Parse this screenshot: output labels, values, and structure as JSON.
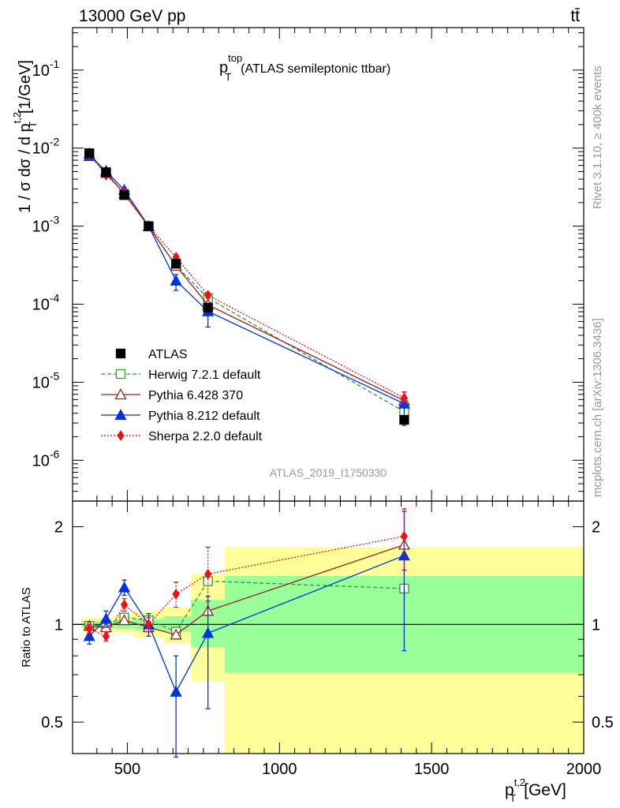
{
  "header": {
    "energy_label": "13000 GeV pp",
    "process_label": "tt̄"
  },
  "side_labels": {
    "rivet": "Rivet 3.1.10, ≥ 400k events",
    "mcplots": "mcplots.cern.ch [arXiv:1306.3436]"
  },
  "chart_data": [
    {
      "type": "line",
      "panel": "main",
      "title_main": "p",
      "title_sup": "top",
      "title_sub": "T",
      "title_rest": "(ATLAS semileptonic ttbar)",
      "analysis_id": "ATLAS_2019_I1750330",
      "ylabel": "1 / σ dσ / d p_T^{t,2} [1/GeV]",
      "ylabel_main": "1 / σ dσ / d p",
      "ylabel_sup": "t,2",
      "ylabel_sub": "T",
      "ylabel_unit": "[1/GeV]",
      "yscale": "log",
      "xlim": [
        320,
        2000
      ],
      "ylim": [
        3e-07,
        0.35
      ],
      "yticks": [
        1e-06,
        1e-05,
        0.0001,
        0.001,
        0.01,
        0.1
      ],
      "ytick_labels": [
        {
          "base": "10",
          "exp": "-6"
        },
        {
          "base": "10",
          "exp": "-5"
        },
        {
          "base": "10",
          "exp": "-4"
        },
        {
          "base": "10",
          "exp": "-3"
        },
        {
          "base": "10",
          "exp": "-2"
        },
        {
          "base": "10",
          "exp": "-1"
        }
      ],
      "x": [
        375,
        430,
        490,
        570,
        660,
        765,
        1410
      ],
      "legend_position": "lower-left",
      "series": [
        {
          "name": "ATLAS",
          "color": "#000000",
          "marker": "filled-square",
          "line": "none",
          "values": [
            0.0086,
            0.0049,
            0.0025,
            0.001,
            0.00033,
            9e-05,
            3.3e-06
          ],
          "err_up": [
            0,
            0,
            0,
            0,
            0,
            0,
            0
          ],
          "err_down": [
            0,
            0,
            0,
            0,
            0,
            0,
            0
          ]
        },
        {
          "name": "Herwig 7.2.1 default",
          "color": "#339933",
          "marker": "open-square",
          "line": "dashed",
          "values": [
            0.0085,
            0.0049,
            0.0026,
            0.001,
            0.00031,
            0.00012,
            4.2e-06
          ],
          "err_up": [
            0,
            0,
            0,
            0,
            0,
            0,
            0
          ],
          "err_down": [
            0,
            0,
            0,
            0,
            0,
            0,
            0
          ]
        },
        {
          "name": "Pythia 6.428 370",
          "color": "#992222",
          "marker": "open-triangle",
          "line": "solid",
          "values": [
            0.0085,
            0.0048,
            0.0026,
            0.00099,
            0.00031,
            9.8e-05,
            5.8e-06
          ],
          "err_up": [
            0,
            0,
            0,
            0,
            0,
            0,
            0
          ],
          "err_down": [
            0,
            0,
            0,
            0,
            0,
            0,
            0
          ]
        },
        {
          "name": "Pythia 8.212 default",
          "color": "#0033dd",
          "marker": "filled-triangle",
          "line": "solid",
          "values": [
            0.0079,
            0.0051,
            0.0029,
            0.001,
            0.0002,
            8.1e-05,
            5.3e-06
          ],
          "err_up": [
            0.0004,
            0.0003,
            0.0002,
            6e-05,
            4e-05,
            1.8e-05,
            2.2e-06
          ],
          "err_down": [
            0.0004,
            0.0003,
            0.0002,
            6e-05,
            5e-05,
            3e-05,
            2.5e-06
          ]
        },
        {
          "name": "Sherpa 2.2.0 default",
          "color": "#ee1111",
          "marker": "filled-diamond",
          "line": "dotted",
          "values": [
            0.0083,
            0.0045,
            0.0027,
            0.001,
            0.0004,
            0.00013,
            6.3e-06
          ],
          "err_up": [
            0.0003,
            0.0002,
            0.0001,
            4e-05,
            3e-05,
            1e-05,
            1.2e-06
          ],
          "err_down": [
            0.0003,
            0.0002,
            0.0001,
            4e-05,
            3e-05,
            1e-05,
            1.2e-06
          ]
        }
      ]
    },
    {
      "type": "line",
      "panel": "ratio",
      "ylabel": "Ratio to ATLAS",
      "xlabel": "p_T^{t,2} [GeV]",
      "xlabel_main": "p",
      "xlabel_sup": "t,2",
      "xlabel_sub": "T",
      "xlabel_unit": "[GeV]",
      "yscale": "log",
      "xlim": [
        320,
        2000
      ],
      "ylim": [
        0.4,
        2.4
      ],
      "xticks": [
        500,
        1000,
        1500,
        2000
      ],
      "xtick_labels": [
        "500",
        "1000",
        "1500",
        "2000"
      ],
      "yticks": [
        0.5,
        1,
        2
      ],
      "ytick_labels": [
        "0.5",
        "1",
        "2"
      ],
      "x": [
        375,
        430,
        490,
        570,
        660,
        765,
        1410
      ],
      "bands": {
        "bin_edges": [
          350,
          400,
          460,
          520,
          620,
          710,
          820,
          2000
        ],
        "total": {
          "color": "#ffff99",
          "lower": [
            0.95,
            0.95,
            0.94,
            0.91,
            0.87,
            0.67,
            0.35
          ],
          "upper": [
            1.05,
            1.05,
            1.07,
            1.1,
            1.13,
            1.43,
            1.73
          ]
        },
        "stat": {
          "color": "#99ff99",
          "lower": [
            0.975,
            0.975,
            0.97,
            0.96,
            0.95,
            0.85,
            0.71
          ],
          "upper": [
            1.025,
            1.025,
            1.03,
            1.04,
            1.06,
            1.19,
            1.41
          ]
        }
      },
      "series": [
        {
          "name": "Herwig 7.2.1 default",
          "color": "#339933",
          "marker": "open-square",
          "line": "dashed",
          "values": [
            0.99,
            1.0,
            1.05,
            1.03,
            0.95,
            1.36,
            1.29
          ],
          "err_up": [
            0,
            0,
            0,
            0,
            0,
            0,
            0
          ],
          "err_down": [
            0,
            0,
            0,
            0,
            0,
            0,
            0
          ]
        },
        {
          "name": "Pythia 6.428 370",
          "color": "#992222",
          "marker": "open-triangle",
          "line": "solid",
          "values": [
            0.99,
            0.98,
            1.03,
            0.98,
            0.93,
            1.1,
            1.76
          ],
          "err_up": [
            0,
            0,
            0,
            0,
            0,
            0,
            0
          ],
          "err_down": [
            0,
            0,
            0,
            0,
            0,
            0,
            0
          ]
        },
        {
          "name": "Pythia 8.212 default",
          "color": "#0033dd",
          "marker": "filled-triangle",
          "line": "solid",
          "values": [
            0.92,
            1.04,
            1.3,
            1.0,
            0.62,
            0.94,
            1.63
          ],
          "err_up": [
            0.05,
            0.06,
            0.07,
            0.08,
            0.18,
            0.28,
            0.6
          ],
          "err_down": [
            0.05,
            0.06,
            0.07,
            0.08,
            0.23,
            0.39,
            0.8
          ]
        },
        {
          "name": "Sherpa 2.2.0 default",
          "color": "#ee1111",
          "marker": "filled-diamond",
          "line": "dotted",
          "values": [
            0.97,
            0.92,
            1.15,
            1.0,
            1.24,
            1.43,
            1.87
          ],
          "err_up": [
            0.03,
            0.03,
            0.05,
            0.05,
            0.11,
            0.3,
            0.4
          ],
          "err_down": [
            0.03,
            0.03,
            0.05,
            0.05,
            0.11,
            0.25,
            0.4
          ]
        }
      ]
    }
  ]
}
